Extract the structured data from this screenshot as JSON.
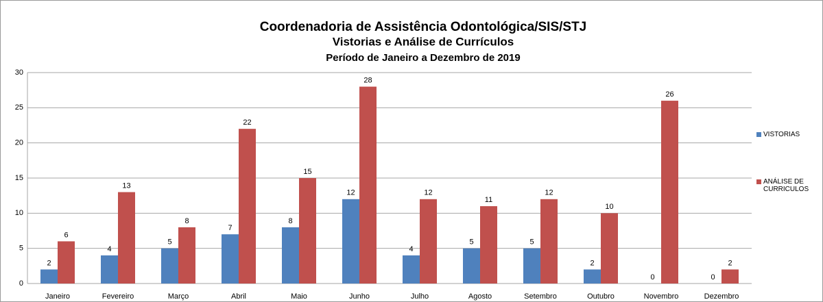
{
  "chart_data": {
    "type": "bar",
    "title": "Coordenadoria de Assistência Odontológica/SIS/STJ",
    "subtitle": "Vistorias e Análise de Currículos",
    "caption": "Período de Janeiro a Dezembro de 2019",
    "categories": [
      "Janeiro",
      "Fevereiro",
      "Março",
      "Abril",
      "Maio",
      "Junho",
      "Julho",
      "Agosto",
      "Setembro",
      "Outubro",
      "Novembro",
      "Dezembro"
    ],
    "series": [
      {
        "name": "VISTORIAS",
        "color": "#4f81bd",
        "values": [
          2,
          4,
          5,
          7,
          8,
          12,
          4,
          5,
          5,
          2,
          0,
          0
        ]
      },
      {
        "name": "ANÁLISE DE CURRICULOS",
        "color": "#c0504d",
        "values": [
          6,
          13,
          8,
          22,
          15,
          28,
          12,
          11,
          12,
          10,
          26,
          2
        ]
      }
    ],
    "ylim": [
      0,
      30
    ],
    "yticks": [
      0,
      5,
      10,
      15,
      20,
      25,
      30
    ],
    "grid": true,
    "legend": "right"
  }
}
